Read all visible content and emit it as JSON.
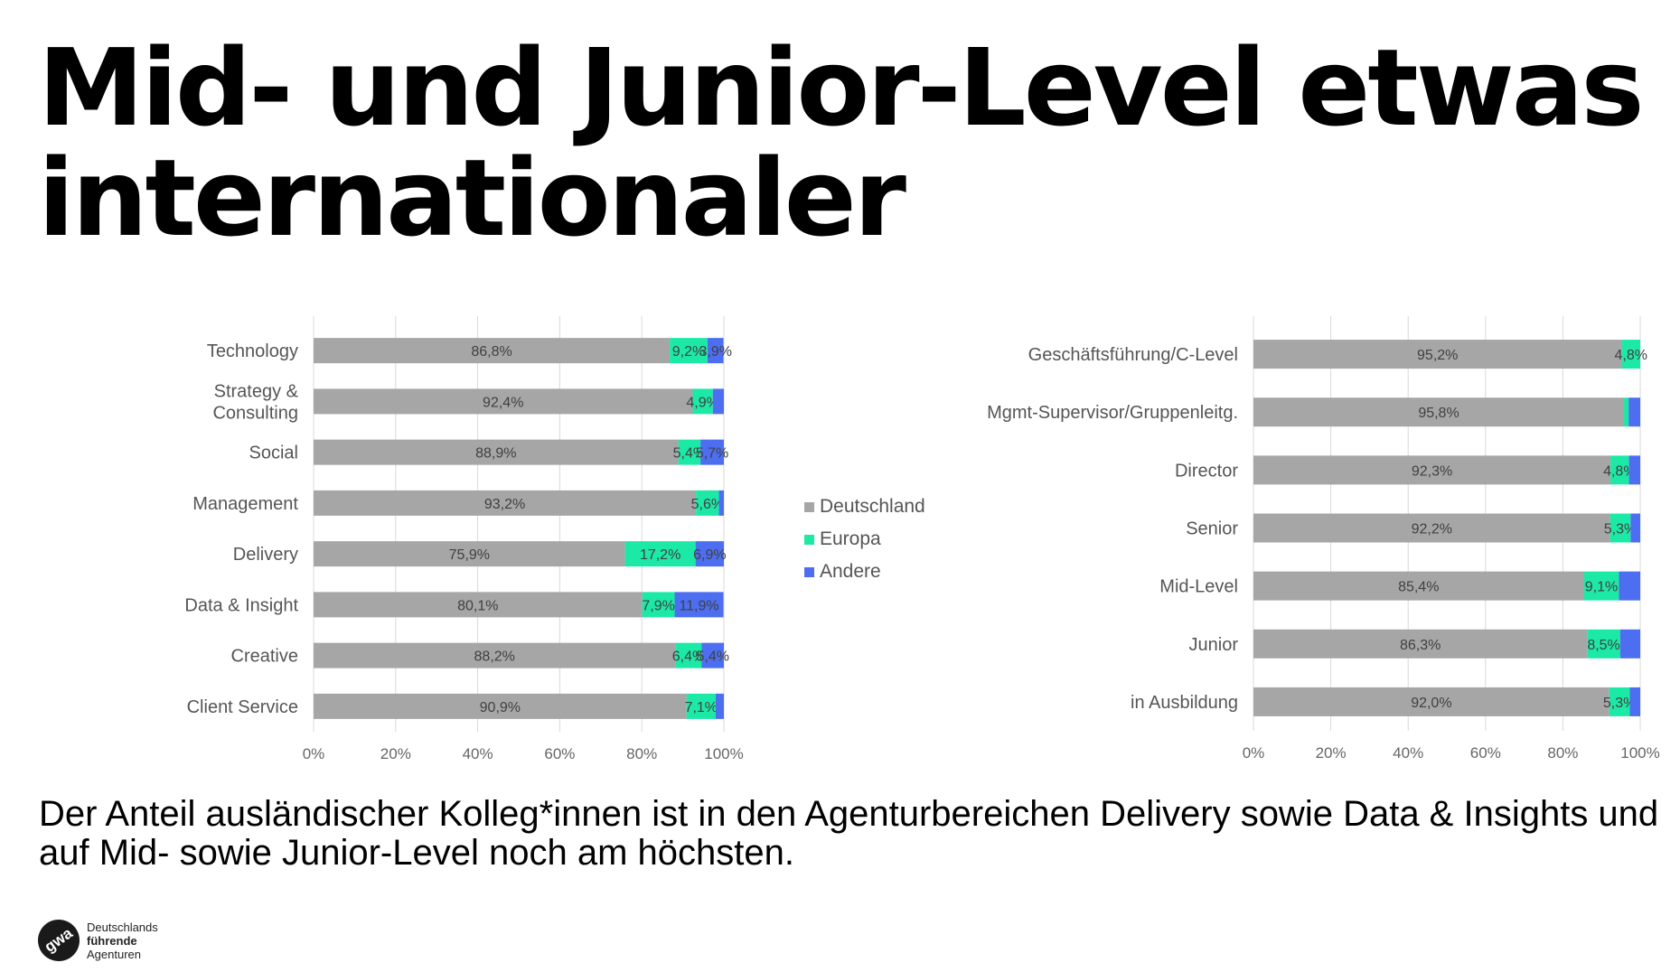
{
  "title": "Mid- und Junior-Level etwas internationaler",
  "subtitle": "Der Anteil ausländischer Kolleg*innen ist in den Agenturbereichen Delivery sowie Data & Insights und auf Mid-  sowie Junior-Level noch am höchsten.",
  "logo": {
    "mark": "gwa",
    "line1": "Deutschlands",
    "line2": "führende",
    "line3": "Agenturen"
  },
  "legend": [
    {
      "label": "Deutschland",
      "color": "#a6a6a6"
    },
    {
      "label": "Europa",
      "color": "#1de9a6"
    },
    {
      "label": "Andere",
      "color": "#4d6ef0"
    }
  ],
  "chart_data": [
    {
      "type": "bar",
      "orientation": "horizontal-stacked-100",
      "categories": [
        "Technology",
        "Strategy & Consulting",
        "Social",
        "Management",
        "Delivery",
        "Data & Insight",
        "Creative",
        "Client Service"
      ],
      "category_lines": [
        [
          "Technology"
        ],
        [
          "Strategy &",
          "Consulting"
        ],
        [
          "Social"
        ],
        [
          "Management"
        ],
        [
          "Delivery"
        ],
        [
          "Data & Insight"
        ],
        [
          "Creative"
        ],
        [
          "Client Service"
        ]
      ],
      "series": [
        {
          "name": "Deutschland",
          "values": [
            86.8,
            92.4,
            88.9,
            93.2,
            75.9,
            80.1,
            88.2,
            90.9
          ],
          "labels": [
            "86,8%",
            "92,4%",
            "88,9%",
            "93,2%",
            "75,9%",
            "80,1%",
            "88,2%",
            "90,9%"
          ]
        },
        {
          "name": "Europa",
          "values": [
            9.2,
            4.9,
            5.4,
            5.6,
            17.2,
            7.9,
            6.4,
            7.1
          ],
          "labels": [
            "9,2%",
            "4,9%",
            "5,4%",
            "5,6%",
            "17,2%",
            "7,9%",
            "6,4%",
            "7,1%"
          ]
        },
        {
          "name": "Andere",
          "values": [
            3.9,
            2.7,
            5.7,
            1.2,
            6.9,
            11.9,
            5.4,
            2.0
          ],
          "labels": [
            "3,9%",
            "",
            "5,7%",
            "",
            "6,9%",
            "11,9%",
            "5,4%",
            ""
          ]
        }
      ],
      "xlim": [
        0,
        100
      ],
      "xticks": [
        "0%",
        "20%",
        "40%",
        "60%",
        "80%",
        "100%"
      ],
      "grid": true
    },
    {
      "type": "bar",
      "orientation": "horizontal-stacked-100",
      "categories": [
        "Geschäftsführung/C-Level",
        "Mgmt-Supervisor/Gruppenleitg.",
        "Director",
        "Senior",
        "Mid-Level",
        "Junior",
        "in Ausbildung"
      ],
      "category_lines": [
        [
          "Geschäftsführung/C-Level"
        ],
        [
          "Mgmt-Supervisor/Gruppenleitg."
        ],
        [
          "Director"
        ],
        [
          "Senior"
        ],
        [
          "Mid-Level"
        ],
        [
          "Junior"
        ],
        [
          "in Ausbildung"
        ]
      ],
      "series": [
        {
          "name": "Deutschland",
          "values": [
            95.2,
            95.8,
            92.3,
            92.2,
            85.4,
            86.3,
            92.0
          ],
          "labels": [
            "95,2%",
            "95,8%",
            "92,3%",
            "92,2%",
            "85,4%",
            "86,3%",
            "92,0%"
          ]
        },
        {
          "name": "Europa",
          "values": [
            4.8,
            1.2,
            4.8,
            5.3,
            9.1,
            8.5,
            5.3
          ],
          "labels": [
            "4,8%",
            "",
            "4,8%",
            "5,3%",
            "9,1%",
            "8,5%",
            "5,3%"
          ]
        },
        {
          "name": "Andere",
          "values": [
            0.0,
            3.0,
            2.9,
            2.5,
            5.5,
            5.2,
            2.7
          ],
          "labels": [
            "",
            "",
            "",
            "",
            "",
            "",
            ""
          ]
        }
      ],
      "xlim": [
        0,
        100
      ],
      "xticks": [
        "0%",
        "20%",
        "40%",
        "60%",
        "80%",
        "100%"
      ],
      "grid": true
    }
  ]
}
